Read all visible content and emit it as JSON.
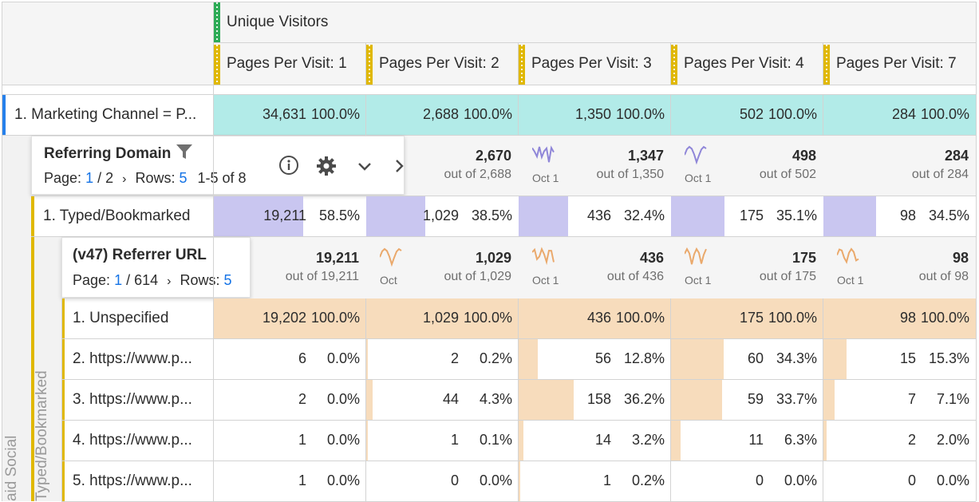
{
  "header": {
    "metric": "Unique Visitors",
    "columns": [
      "Pages Per Visit: 1",
      "Pages Per Visit: 2",
      "Pages Per Visit: 3",
      "Pages Per Visit: 4",
      "Pages Per Visit: 7"
    ]
  },
  "top_row": {
    "label": "1.  Marketing Channel = P...",
    "values": [
      "34,631",
      "2,688",
      "1,350",
      "502",
      "284"
    ],
    "pcts": [
      "100.0%",
      "100.0%",
      "100.0%",
      "100.0%",
      "100.0%"
    ]
  },
  "outer_side_label": "aid Social",
  "referring_domain": {
    "title": "Referring Domain",
    "page_label": "Page:",
    "page_current": "1",
    "page_total": "/ 2",
    "rows_label": "Rows:",
    "rows_value": "5",
    "range": "1-5 of 8",
    "totals": [
      "2,670",
      "1,347",
      "498",
      "284"
    ],
    "out_of": [
      "out of 2,688",
      "out of 1,350",
      "out of 502",
      "out of 284"
    ],
    "spark_labels": [
      "Oct",
      "Oct 1",
      "Oct 1"
    ],
    "icons": [
      "filter-icon",
      "info-icon",
      "gear-icon",
      "chevron-down-icon",
      "chevron-right-icon"
    ]
  },
  "typed_row": {
    "label": "1.  Typed/Bookmarked",
    "values": [
      "19,211",
      "1,029",
      "436",
      "175",
      "98"
    ],
    "pcts": [
      "58.5%",
      "38.5%",
      "32.4%",
      "35.1%",
      "34.5%"
    ],
    "bar_fractions": [
      0.585,
      0.385,
      0.324,
      0.351,
      0.345
    ]
  },
  "inner_side_label": "Typed/Bookmarked",
  "referrer_url": {
    "title": "(v47) Referrer URL",
    "page_label": "Page:",
    "page_current": "1",
    "page_total": "/ 614",
    "rows_label": "Rows:",
    "rows_value": "5",
    "totals": [
      "19,211",
      "1,029",
      "436",
      "175",
      "98"
    ],
    "out_of": [
      "out of 19,211",
      "out of 1,029",
      "out of 436",
      "out of 175",
      "out of 98"
    ],
    "spark_labels": [
      "Oct",
      "Oct 1",
      "Oct 1",
      "Oct 1"
    ]
  },
  "rows": [
    {
      "label": "1.  Unspecified",
      "values": [
        "19,202",
        "1,029",
        "436",
        "175",
        "98"
      ],
      "pcts": [
        "100.0%",
        "100.0%",
        "100.0%",
        "100.0%",
        "100.0%"
      ],
      "bar_fractions": [
        1,
        1,
        1,
        1,
        1
      ]
    },
    {
      "label": "2.  https://www.p...",
      "values": [
        "6",
        "2",
        "56",
        "60",
        "15"
      ],
      "pcts": [
        "0.0%",
        "0.2%",
        "12.8%",
        "34.3%",
        "15.3%"
      ],
      "bar_fractions": [
        0,
        0.002,
        0.128,
        0.343,
        0.153
      ]
    },
    {
      "label": "3.  https://www.p...",
      "values": [
        "2",
        "44",
        "158",
        "59",
        "7"
      ],
      "pcts": [
        "0.0%",
        "4.3%",
        "36.2%",
        "33.7%",
        "7.1%"
      ],
      "bar_fractions": [
        0,
        0.043,
        0.362,
        0.337,
        0.071
      ]
    },
    {
      "label": "4.  https://www.p...",
      "values": [
        "1",
        "1",
        "14",
        "11",
        "2"
      ],
      "pcts": [
        "0.0%",
        "0.1%",
        "3.2%",
        "6.3%",
        "2.0%"
      ],
      "bar_fractions": [
        0,
        0.001,
        0.032,
        0.063,
        0.02
      ]
    },
    {
      "label": "5.  https://www.p...",
      "values": [
        "1",
        "0",
        "1",
        "0",
        "0"
      ],
      "pcts": [
        "0.0%",
        "0.0%",
        "0.2%",
        "0.0%",
        "0.0%"
      ],
      "bar_fractions": [
        0,
        0,
        0.002,
        0,
        0
      ]
    }
  ],
  "colors": {
    "metric_green": "#2dab56",
    "dimension_yellow": "#e0b800",
    "channel_blue": "#2680eb",
    "teal_fill": "#b2ebe8",
    "purple_fill": "#c9c6f0",
    "orange_fill": "#f7dcbc",
    "purple_spark": "#8f86d8",
    "orange_spark": "#eaa96c",
    "link_blue": "#1473e6"
  }
}
